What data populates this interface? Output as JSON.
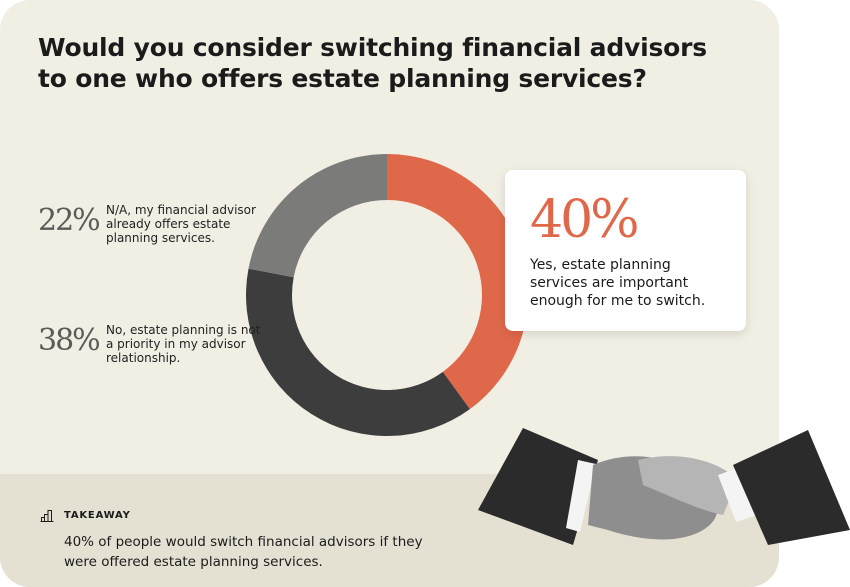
{
  "chart_data": {
    "type": "pie",
    "title": "Would you consider switching financial advisors to one who offers estate planning services?",
    "donut": true,
    "slices": [
      {
        "value": 40,
        "label_pct": "40%",
        "label": "Yes, estate planning services are important enough for me to switch.",
        "color": "#e0684a"
      },
      {
        "value": 38,
        "label_pct": "38%",
        "label": "No, estate planning is not a priority in my advisor relationship.",
        "color": "#3d3d3d"
      },
      {
        "value": 22,
        "label_pct": "22%",
        "label": "N/A, my financial advisor already offers estate planning services.",
        "color": "#7b7b79"
      }
    ]
  },
  "takeaway": {
    "icon": "bar-chart-icon",
    "heading": "TAKEAWAY",
    "text": "40% of people would switch financial advisors if they were offered estate planning services."
  },
  "colors": {
    "background": "#f1efe4",
    "footer": "#e4e1d2",
    "accent": "#e0684a"
  }
}
